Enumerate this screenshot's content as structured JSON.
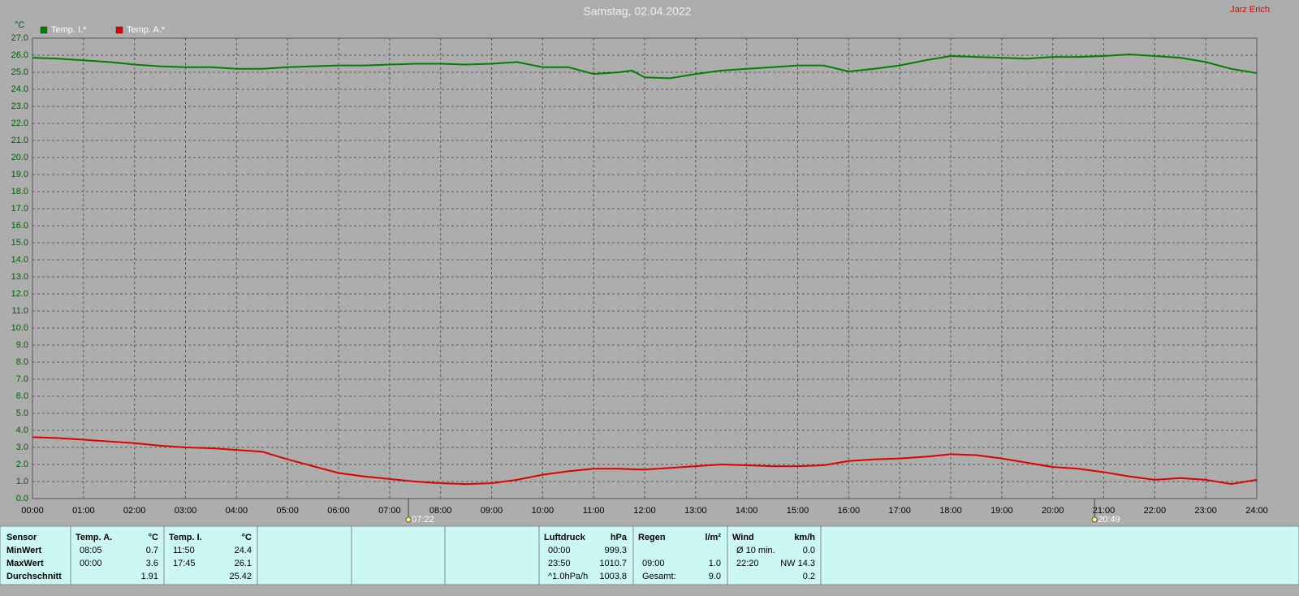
{
  "header": {
    "author": "Jarz Erich"
  },
  "chart_data": {
    "type": "line",
    "title": "Samstag, 02.04.2022",
    "y_label": "°C",
    "x": [
      0,
      0.5,
      1,
      1.5,
      2,
      2.5,
      3,
      3.5,
      4,
      4.5,
      5,
      5.5,
      6,
      6.5,
      7,
      7.5,
      8,
      8.5,
      9,
      9.5,
      10,
      10.5,
      11,
      11.5,
      11.75,
      12,
      12.5,
      13,
      13.5,
      14,
      14.5,
      15,
      15.5,
      16,
      16.5,
      17,
      17.5,
      18,
      18.5,
      19,
      19.5,
      20,
      20.5,
      21,
      21.5,
      22,
      22.5,
      23,
      23.5,
      24
    ],
    "series": [
      {
        "name": "Temp. I.*",
        "color": "#008000",
        "values": [
          25.85,
          25.8,
          25.7,
          25.6,
          25.45,
          25.35,
          25.3,
          25.3,
          25.2,
          25.2,
          25.3,
          25.35,
          25.4,
          25.4,
          25.45,
          25.5,
          25.5,
          25.45,
          25.5,
          25.6,
          25.3,
          25.3,
          24.9,
          25.0,
          25.1,
          24.7,
          24.65,
          24.9,
          25.1,
          25.2,
          25.3,
          25.4,
          25.4,
          25.05,
          25.2,
          25.4,
          25.7,
          25.95,
          25.9,
          25.85,
          25.8,
          25.9,
          25.9,
          25.95,
          26.05,
          25.95,
          25.85,
          25.6,
          25.2,
          24.95
        ]
      },
      {
        "name": "Temp. A.*",
        "color": "#e00000",
        "values": [
          3.6,
          3.55,
          3.45,
          3.35,
          3.25,
          3.1,
          3.0,
          2.95,
          2.85,
          2.75,
          2.3,
          1.9,
          1.5,
          1.3,
          1.15,
          1.0,
          0.9,
          0.85,
          0.9,
          1.1,
          1.4,
          1.6,
          1.75,
          1.75,
          1.72,
          1.7,
          1.8,
          1.9,
          2.0,
          1.95,
          1.9,
          1.9,
          1.95,
          2.2,
          2.3,
          2.35,
          2.45,
          2.6,
          2.55,
          2.35,
          2.1,
          1.85,
          1.75,
          1.55,
          1.3,
          1.1,
          1.2,
          1.1,
          0.85,
          1.1
        ]
      }
    ],
    "xlim": [
      0,
      24
    ],
    "xticks": [
      {
        "value": 0,
        "label": "00:00"
      },
      {
        "value": 1,
        "label": "01:00"
      },
      {
        "value": 2,
        "label": "02:00"
      },
      {
        "value": 3,
        "label": "03:00"
      },
      {
        "value": 4,
        "label": "04:00"
      },
      {
        "value": 5,
        "label": "05:00"
      },
      {
        "value": 6,
        "label": "06:00"
      },
      {
        "value": 7,
        "label": "07:00"
      },
      {
        "value": 8,
        "label": "08:00"
      },
      {
        "value": 9,
        "label": "09:00"
      },
      {
        "value": 10,
        "label": "10:00"
      },
      {
        "value": 11,
        "label": "11:00"
      },
      {
        "value": 12,
        "label": "12:00"
      },
      {
        "value": 13,
        "label": "13:00"
      },
      {
        "value": 14,
        "label": "14:00"
      },
      {
        "value": 15,
        "label": "15:00"
      },
      {
        "value": 16,
        "label": "16:00"
      },
      {
        "value": 17,
        "label": "17:00"
      },
      {
        "value": 18,
        "label": "18:00"
      },
      {
        "value": 19,
        "label": "19:00"
      },
      {
        "value": 20,
        "label": "20:00"
      },
      {
        "value": 21,
        "label": "21:00"
      },
      {
        "value": 22,
        "label": "22:00"
      },
      {
        "value": 23,
        "label": "23:00"
      },
      {
        "value": 24,
        "label": "24:00"
      }
    ],
    "ylim": [
      0,
      27
    ],
    "yticks": [
      {
        "value": 0,
        "label": "0.0"
      },
      {
        "value": 1,
        "label": "1.0"
      },
      {
        "value": 2,
        "label": "2.0"
      },
      {
        "value": 3,
        "label": "3.0"
      },
      {
        "value": 4,
        "label": "4.0"
      },
      {
        "value": 5,
        "label": "5.0"
      },
      {
        "value": 6,
        "label": "6.0"
      },
      {
        "value": 7,
        "label": "7.0"
      },
      {
        "value": 8,
        "label": "8.0"
      },
      {
        "value": 9,
        "label": "9.0"
      },
      {
        "value": 10,
        "label": "10.0"
      },
      {
        "value": 11,
        "label": "11.0"
      },
      {
        "value": 12,
        "label": "12.0"
      },
      {
        "value": 13,
        "label": "13.0"
      },
      {
        "value": 14,
        "label": "14.0"
      },
      {
        "value": 15,
        "label": "15.0"
      },
      {
        "value": 16,
        "label": "16.0"
      },
      {
        "value": 17,
        "label": "17.0"
      },
      {
        "value": 18,
        "label": "18.0"
      },
      {
        "value": 19,
        "label": "19.0"
      },
      {
        "value": 20,
        "label": "20.0"
      },
      {
        "value": 21,
        "label": "21.0"
      },
      {
        "value": 22,
        "label": "22.0"
      },
      {
        "value": 23,
        "label": "23.0"
      },
      {
        "value": 24,
        "label": "24.0"
      },
      {
        "value": 25,
        "label": "25.0"
      },
      {
        "value": 26,
        "label": "26.0"
      },
      {
        "value": 27,
        "label": "27.0"
      }
    ],
    "grid": true,
    "legend": "top-left",
    "annotations": [
      {
        "x": 7.37,
        "label": "07:22"
      },
      {
        "x": 20.82,
        "label": "20:49"
      }
    ]
  },
  "stats": {
    "row_labels": [
      "Sensor",
      "MinWert",
      "MaxWert",
      "Durchschnitt"
    ],
    "blocks": [
      {
        "name": "Temp. A.",
        "unit": "°C",
        "rows": [
          {
            "time": "08:05",
            "value": "0.7"
          },
          {
            "time": "00:00",
            "value": "3.6"
          },
          {
            "value": "1.91"
          }
        ]
      },
      {
        "name": "Temp. I.",
        "unit": "°C",
        "rows": [
          {
            "time": "11:50",
            "value": "24.4"
          },
          {
            "time": "17:45",
            "value": "26.1"
          },
          {
            "value": "25.42"
          }
        ]
      },
      {
        "name": "Luftdruck",
        "unit": "hPa",
        "rows": [
          {
            "time": "00:00",
            "value": "999.3"
          },
          {
            "time": "23:50",
            "value": "1010.7"
          },
          {
            "time": "^1.0hPa/h",
            "value": "1003.8"
          }
        ]
      },
      {
        "name": "Regen",
        "unit": "l/m²",
        "rows": [
          null,
          {
            "time": "09:00",
            "value": "1.0"
          },
          {
            "time": "Gesamt:",
            "value": "9.0"
          }
        ]
      },
      {
        "name": "Wind",
        "unit": "km/h",
        "rows": [
          {
            "time": "Ø 10 min.",
            "value": "0.0"
          },
          {
            "time": "22:20",
            "value": "NW 14.3"
          },
          {
            "value": "0.2"
          }
        ]
      }
    ]
  }
}
